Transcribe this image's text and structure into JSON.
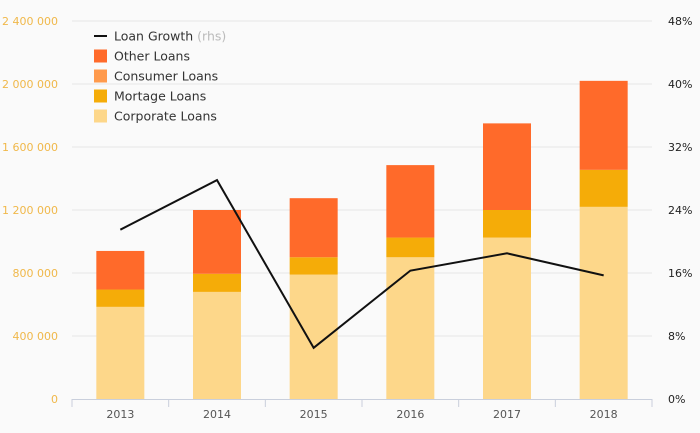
{
  "chart_data": {
    "type": "bar",
    "stacked": true,
    "categories": [
      "2013",
      "2014",
      "2015",
      "2016",
      "2017",
      "2018"
    ],
    "series": [
      {
        "name": "Corporate Loans",
        "values": [
          585000,
          680000,
          790000,
          900000,
          1025000,
          1220000
        ],
        "color": "#fdd78a"
      },
      {
        "name": "Mortage Loans",
        "values": [
          110000,
          115000,
          110000,
          125000,
          175000,
          235000
        ],
        "color": "#f5ac08"
      },
      {
        "name": "Consumer Loans",
        "values": [
          0,
          0,
          0,
          0,
          0,
          0
        ],
        "color": "#ff9a4c"
      },
      {
        "name": "Other Loans",
        "values": [
          245000,
          405000,
          375000,
          460000,
          550000,
          565000
        ],
        "color": "#ff6a2a"
      }
    ],
    "line": {
      "name": "Loan Growth",
      "suffix": "(rhs)",
      "values": [
        21.5,
        27.8,
        6.5,
        16.3,
        18.5,
        15.7
      ],
      "color": "#111111"
    },
    "y_left": {
      "min": 0,
      "max": 2400000,
      "ticks": [
        0,
        400000,
        800000,
        1200000,
        1600000,
        2000000,
        2400000
      ],
      "tick_labels": [
        "0",
        "400 000",
        "800 000",
        "1 200 000",
        "1 600 000",
        "2 000 000",
        "2 400 000"
      ]
    },
    "y_right": {
      "min": 0,
      "max": 48,
      "ticks": [
        0,
        8,
        16,
        24,
        32,
        40,
        48
      ],
      "tick_labels": [
        "0%",
        "8%",
        "16%",
        "24%",
        "32%",
        "40%",
        "48%"
      ]
    },
    "legend_order": [
      "Loan Growth",
      "Other Loans",
      "Consumer Loans",
      "Mortage Loans",
      "Corporate Loans"
    ],
    "legend_position": "top-left",
    "grid": true,
    "colors": {
      "grid": "#e6e6e6",
      "axis": "#c9cfdc",
      "left_ticks": "#f0b84a",
      "right_ticks": "#222222"
    }
  }
}
